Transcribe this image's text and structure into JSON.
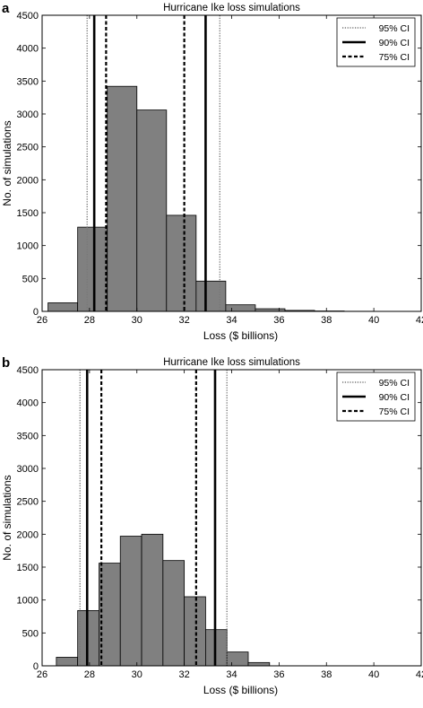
{
  "chart_data": [
    {
      "panel_label": "a",
      "type": "bar",
      "title": "Hurricane Ike loss simulations",
      "xlabel": "Loss ($ billions)",
      "ylabel": "No. of simulations",
      "xlim": [
        26,
        42
      ],
      "ylim": [
        0,
        4500
      ],
      "xticks": [
        26,
        28,
        30,
        32,
        34,
        36,
        38,
        40,
        42
      ],
      "yticks": [
        0,
        500,
        1000,
        1500,
        2000,
        2500,
        3000,
        3500,
        4000,
        4500
      ],
      "bin_width": 1.25,
      "bins": [
        {
          "start": 26.25,
          "count": 130
        },
        {
          "start": 27.5,
          "count": 1280
        },
        {
          "start": 28.75,
          "count": 3420
        },
        {
          "start": 30.0,
          "count": 3060
        },
        {
          "start": 31.25,
          "count": 1460
        },
        {
          "start": 32.5,
          "count": 460
        },
        {
          "start": 33.75,
          "count": 100
        },
        {
          "start": 35.0,
          "count": 40
        },
        {
          "start": 36.25,
          "count": 15
        },
        {
          "start": 37.5,
          "count": 6
        },
        {
          "start": 38.75,
          "count": 2
        }
      ],
      "ci_lines": [
        {
          "name": "95% CI",
          "style": "dotted",
          "low": 27.9,
          "high": 33.5
        },
        {
          "name": "90% CI",
          "style": "solid",
          "low": 28.2,
          "high": 32.9
        },
        {
          "name": "75% CI",
          "style": "dashed",
          "low": 28.7,
          "high": 32.0
        }
      ],
      "legend_position": "top-right",
      "bar_color": "#808080",
      "grid": false
    },
    {
      "panel_label": "b",
      "type": "bar",
      "title": "Hurricane Ike loss simulations",
      "xlabel": "Loss ($ billions)",
      "ylabel": "No. of simulations",
      "xlim": [
        26,
        42
      ],
      "ylim": [
        0,
        4500
      ],
      "xticks": [
        26,
        28,
        30,
        32,
        34,
        36,
        38,
        40,
        42
      ],
      "yticks": [
        0,
        500,
        1000,
        1500,
        2000,
        2500,
        3000,
        3500,
        4000,
        4500
      ],
      "bin_width": 0.9,
      "bins": [
        {
          "start": 26.6,
          "count": 130
        },
        {
          "start": 27.5,
          "count": 840
        },
        {
          "start": 28.4,
          "count": 1560
        },
        {
          "start": 29.3,
          "count": 1970
        },
        {
          "start": 30.2,
          "count": 2000
        },
        {
          "start": 31.1,
          "count": 1600
        },
        {
          "start": 32.0,
          "count": 1050
        },
        {
          "start": 32.9,
          "count": 550
        },
        {
          "start": 33.8,
          "count": 210
        },
        {
          "start": 34.7,
          "count": 50
        }
      ],
      "ci_lines": [
        {
          "name": "95% CI",
          "style": "dotted",
          "low": 27.6,
          "high": 33.8
        },
        {
          "name": "90% CI",
          "style": "solid",
          "low": 27.9,
          "high": 33.3
        },
        {
          "name": "75% CI",
          "style": "dashed",
          "low": 28.5,
          "high": 32.5
        }
      ],
      "legend_position": "top-right",
      "bar_color": "#808080",
      "grid": false
    }
  ]
}
